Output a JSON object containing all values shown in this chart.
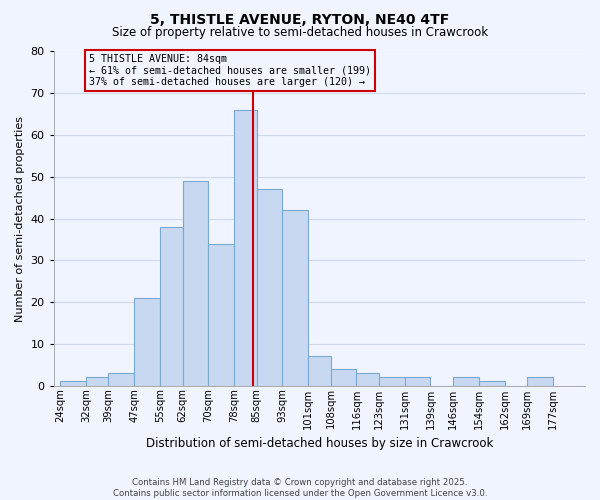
{
  "title": "5, THISTLE AVENUE, RYTON, NE40 4TF",
  "subtitle": "Size of property relative to semi-detached houses in Crawcrook",
  "xlabel": "Distribution of semi-detached houses by size in Crawcrook",
  "ylabel": "Number of semi-detached properties",
  "bin_labels": [
    "24sqm",
    "32sqm",
    "39sqm",
    "47sqm",
    "55sqm",
    "62sqm",
    "70sqm",
    "78sqm",
    "85sqm",
    "93sqm",
    "101sqm",
    "108sqm",
    "116sqm",
    "123sqm",
    "131sqm",
    "139sqm",
    "146sqm",
    "154sqm",
    "162sqm",
    "169sqm",
    "177sqm"
  ],
  "bin_edges": [
    24,
    32,
    39,
    47,
    55,
    62,
    70,
    78,
    85,
    93,
    101,
    108,
    116,
    123,
    131,
    139,
    146,
    154,
    162,
    169,
    177
  ],
  "counts": [
    1,
    2,
    3,
    21,
    38,
    49,
    34,
    66,
    47,
    42,
    7,
    4,
    3,
    2,
    2,
    0,
    2,
    1,
    0,
    2
  ],
  "bar_color": "#c8d8f0",
  "bar_edge_color": "#7aaad0",
  "property_value": 84,
  "vline_color": "#cc0000",
  "annotation_text": "5 THISTLE AVENUE: 84sqm\n← 61% of semi-detached houses are smaller (199)\n37% of semi-detached houses are larger (120) →",
  "annotation_box_edge": "#cc0000",
  "ylim": [
    0,
    80
  ],
  "yticks": [
    0,
    10,
    20,
    30,
    40,
    50,
    60,
    70,
    80
  ],
  "background_color": "#f0f4ff",
  "grid_color": "#d0d8ee",
  "footer_line1": "Contains HM Land Registry data © Crown copyright and database right 2025.",
  "footer_line2": "Contains public sector information licensed under the Open Government Licence v3.0."
}
